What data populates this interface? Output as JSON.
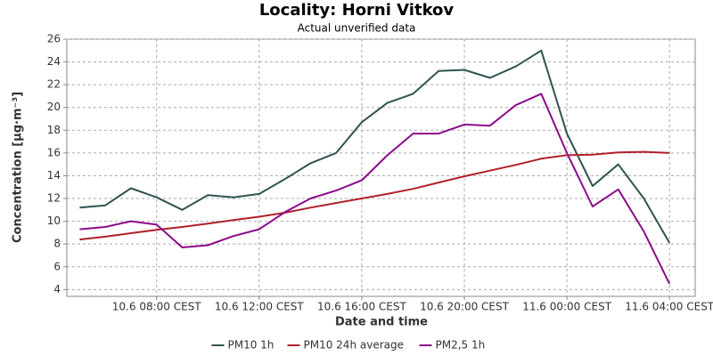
{
  "chart_data": {
    "type": "line",
    "title": "Locality: Horni Vitkov",
    "subtitle": "Actual unverified data",
    "x_label": "Date and time",
    "y_label": "Concentration [µg·m⁻³]",
    "x": [
      "10.6 05:00 CEST",
      "10.6 06:00 CEST",
      "10.6 07:00 CEST",
      "10.6 08:00 CEST",
      "10.6 09:00 CEST",
      "10.6 10:00 CEST",
      "10.6 11:00 CEST",
      "10.6 12:00 CEST",
      "10.6 13:00 CEST",
      "10.6 14:00 CEST",
      "10.6 15:00 CEST",
      "10.6 16:00 CEST",
      "10.6 17:00 CEST",
      "10.6 18:00 CEST",
      "10.6 19:00 CEST",
      "10.6 20:00 CEST",
      "10.6 21:00 CEST",
      "10.6 22:00 CEST",
      "10.6 23:00 CEST",
      "11.6 00:00 CEST",
      "11.6 01:00 CEST",
      "11.6 02:00 CEST",
      "11.6 03:00 CEST",
      "11.6 04:00 CEST"
    ],
    "xlim": [
      "10.6 04:30 CEST",
      "11.6 05:00 CEST"
    ],
    "xticks": [
      "10.6 08:00 CEST",
      "10.6 12:00 CEST",
      "10.6 16:00 CEST",
      "10.6 20:00 CEST",
      "11.6 00:00 CEST",
      "11.6 04:00 CEST"
    ],
    "ylim": [
      3.4,
      26
    ],
    "yticks": [
      4,
      6,
      8,
      10,
      12,
      14,
      16,
      18,
      20,
      22,
      24,
      26
    ],
    "grid": true,
    "legend": "bottom",
    "series": [
      {
        "name": "PM10 1h",
        "color": "#2f5450",
        "values": [
          11.2,
          11.4,
          12.9,
          12.1,
          11.0,
          12.3,
          12.1,
          12.4,
          13.7,
          15.1,
          16.0,
          18.7,
          20.4,
          21.2,
          23.2,
          23.3,
          22.6,
          23.6,
          25.0,
          17.7,
          13.1,
          15.0,
          12.0,
          8.1
        ]
      },
      {
        "name": "PM10 24h average",
        "color": "#b0202a",
        "values": [
          8.4,
          8.65,
          8.95,
          9.25,
          9.5,
          9.8,
          10.1,
          10.4,
          10.75,
          11.2,
          11.6,
          12.0,
          12.4,
          12.85,
          13.4,
          13.95,
          14.45,
          14.95,
          15.5,
          15.8,
          15.85,
          16.05,
          16.1,
          16.0
        ]
      },
      {
        "name": "PM2,5 1h",
        "color": "#8b0a8b",
        "values": [
          9.3,
          9.5,
          10.0,
          9.7,
          7.7,
          7.9,
          8.7,
          9.3,
          10.8,
          12.0,
          12.7,
          13.6,
          15.8,
          17.7,
          17.7,
          18.5,
          18.4,
          20.2,
          21.2,
          16.0,
          11.3,
          12.8,
          9.1,
          4.5
        ]
      }
    ]
  }
}
